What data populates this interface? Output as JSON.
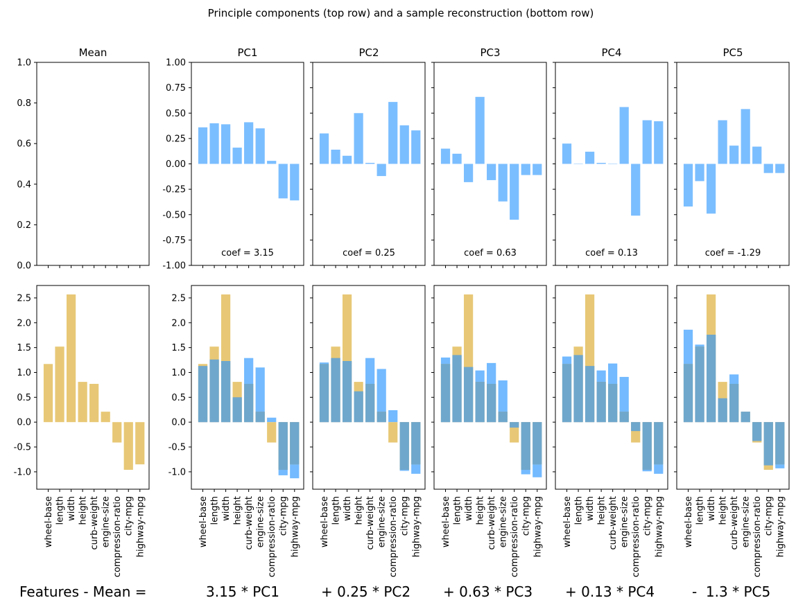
{
  "suptitle": "Principle components (top row) and a sample reconstruction (bottom row)",
  "colors": {
    "component": "#5aaeff",
    "mean": "#e2ba54",
    "overlap": "#6fa7cc"
  },
  "chart_data": {
    "type": "bar",
    "features": [
      "wheel-base",
      "length",
      "width",
      "height",
      "curb-weight",
      "engine-size",
      "compression-ratio",
      "city-mpg",
      "highway-mpg"
    ],
    "top_row": {
      "ylim": [
        -1.0,
        1.0
      ],
      "yticks": [
        "1.00",
        "0.75",
        "0.50",
        "0.25",
        "0.00",
        "-0.25",
        "-0.50",
        "-0.75",
        "-1.00"
      ],
      "mean_panel": {
        "title": "Mean",
        "ylim": [
          0.0,
          1.0
        ],
        "yticks": [
          "1.0",
          "0.8",
          "0.6",
          "0.4",
          "0.2",
          "0.0"
        ]
      },
      "components": [
        {
          "name": "PC1",
          "coef_label": "coef = 3.15",
          "values": [
            0.36,
            0.4,
            0.39,
            0.16,
            0.41,
            0.35,
            0.03,
            -0.34,
            -0.36
          ]
        },
        {
          "name": "PC2",
          "coef_label": "coef = 0.25",
          "values": [
            0.3,
            0.14,
            0.08,
            0.5,
            0.01,
            -0.12,
            0.61,
            0.38,
            0.33
          ]
        },
        {
          "name": "PC3",
          "coef_label": "coef = 0.63",
          "values": [
            0.15,
            0.1,
            -0.18,
            0.66,
            -0.16,
            -0.37,
            -0.55,
            -0.11,
            -0.11
          ]
        },
        {
          "name": "PC4",
          "coef_label": "coef = 0.13",
          "values": [
            0.2,
            0.0,
            0.12,
            0.01,
            0.0,
            0.56,
            -0.51,
            0.43,
            0.42
          ]
        },
        {
          "name": "PC5",
          "coef_label": "coef = -1.29",
          "values": [
            -0.42,
            -0.17,
            -0.49,
            0.43,
            0.18,
            0.54,
            0.17,
            -0.09,
            -0.09
          ]
        }
      ]
    },
    "bottom_row": {
      "ylim": [
        -1.35,
        2.75
      ],
      "yticks": [
        "2.5",
        "2.0",
        "1.5",
        "1.0",
        "0.5",
        "0.0",
        "-0.5",
        "-1.0"
      ],
      "features_values": [
        1.17,
        1.52,
        2.57,
        0.81,
        0.77,
        0.21,
        -0.41,
        -0.96,
        -0.85
      ],
      "reconstructions": [
        [
          1.13,
          1.26,
          1.23,
          0.5,
          1.29,
          1.1,
          0.09,
          -1.07,
          -1.13
        ],
        [
          1.2,
          1.29,
          1.23,
          0.62,
          1.29,
          1.07,
          0.24,
          -0.98,
          -1.04
        ],
        [
          1.3,
          1.35,
          1.11,
          1.04,
          1.19,
          0.84,
          -0.11,
          -1.05,
          -1.11
        ],
        [
          1.32,
          1.35,
          1.13,
          1.04,
          1.18,
          0.91,
          -0.18,
          -0.99,
          -1.04
        ],
        [
          1.86,
          1.56,
          1.76,
          0.48,
          0.96,
          0.21,
          -0.38,
          -0.87,
          -0.93
        ]
      ]
    }
  },
  "equation": [
    "Features - Mean =",
    "3.15 * PC1",
    "+ 0.25 * PC2",
    "+ 0.63 * PC3",
    "+ 0.13 * PC4",
    "-  1.3 * PC5"
  ]
}
